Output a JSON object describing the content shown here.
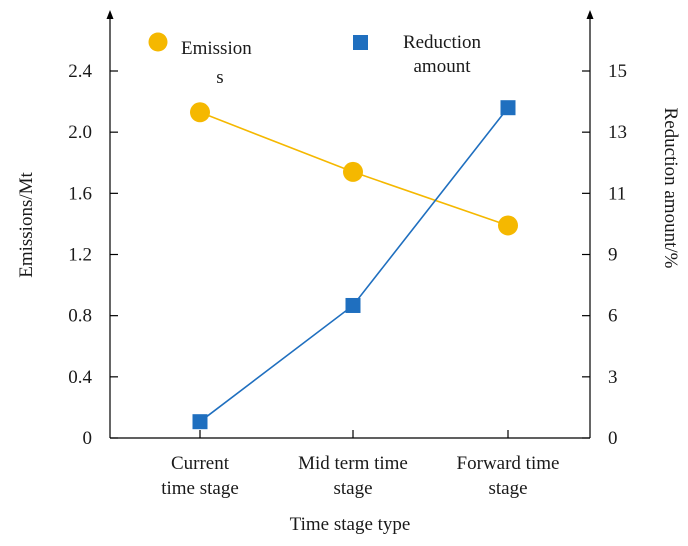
{
  "chart_data": {
    "type": "line",
    "categories": [
      [
        "Current",
        "time stage"
      ],
      [
        "Mid term time",
        "stage"
      ],
      [
        "Forward time",
        "stage"
      ]
    ],
    "xlabel": "Time stage type",
    "ylabel_left": "Emissions/Mt",
    "ylabel_right": "Reduction amount/%",
    "y_left": {
      "lim": [
        0,
        2.4
      ],
      "ticks": [
        "0",
        "0.4",
        "0.8",
        "1.2",
        "1.6",
        "2.0",
        "2.4"
      ]
    },
    "y_right": {
      "lim": [
        0,
        15
      ],
      "ticks": [
        "0",
        "3",
        "6",
        "9",
        "11",
        "13",
        "15"
      ]
    },
    "grid": false,
    "legend_position": "top",
    "series": [
      {
        "name_lines": [
          "Emission",
          "s"
        ],
        "axis": "left",
        "marker": "circle",
        "color": "#f5b800",
        "line_color": "#f5b800",
        "values": [
          2.13,
          1.74,
          1.39
        ]
      },
      {
        "name_lines": [
          "Reduction",
          "amount"
        ],
        "axis": "right",
        "marker": "square",
        "color": "#1f6fbf",
        "line_color": "#1f6fbf",
        "values": [
          0.8,
          6.5,
          13.8
        ]
      }
    ]
  }
}
